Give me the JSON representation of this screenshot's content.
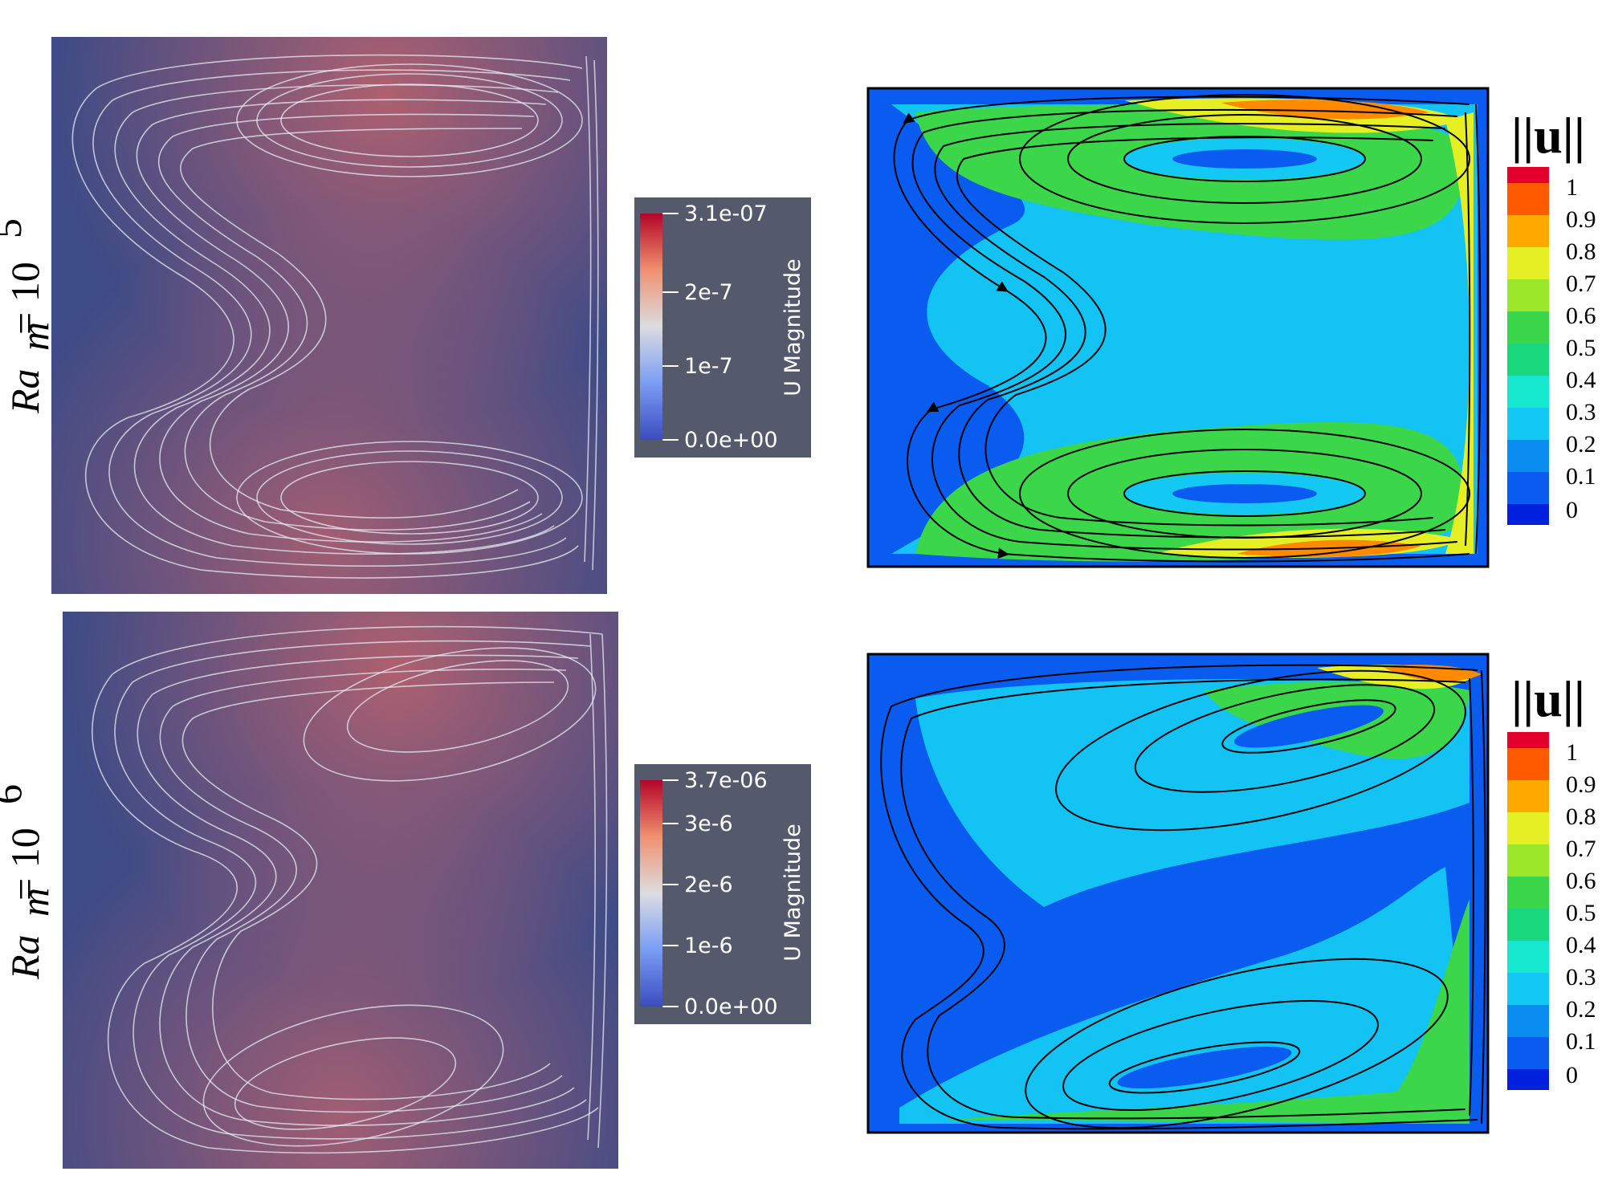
{
  "rows": [
    {
      "label_main": "Ra",
      "label_sub": "m",
      "label_eq": " = 10",
      "label_exp": "5",
      "left_legend": {
        "title": "U Magnitude",
        "ticks": [
          "3.1e-07",
          "2e-7",
          "1e-7",
          "0.0e+00"
        ]
      },
      "right_legend": {
        "title": "||u||",
        "ticks": [
          "1",
          "0.9",
          "0.8",
          "0.7",
          "0.6",
          "0.5",
          "0.4",
          "0.3",
          "0.2",
          "0.1",
          "0"
        ]
      }
    },
    {
      "label_main": "Ra",
      "label_sub": "m",
      "label_eq": " = 10",
      "label_exp": "6",
      "left_legend": {
        "title": "U Magnitude",
        "ticks": [
          "3.7e-06",
          "3e-6",
          "2e-6",
          "1e-6",
          "0.0e+00"
        ]
      },
      "right_legend": {
        "title": "||u||",
        "ticks": [
          "1",
          "0.9",
          "0.8",
          "0.7",
          "0.6",
          "0.5",
          "0.4",
          "0.3",
          "0.2",
          "0.1",
          "0"
        ]
      }
    }
  ],
  "colors": {
    "paraview_bg": "#3d4b86",
    "paraview_legend_bg": "#545a6c",
    "streamline_light": "#e8ecf5",
    "streamline_dark": "#000000",
    "contour_blue": "#0a5cf0",
    "contour_cyan": "#13c8f2",
    "contour_green": "#3bd64a",
    "contour_yellow": "#e5ef24",
    "contour_orange": "#ff8a00",
    "contour_red": "#e4002b"
  }
}
